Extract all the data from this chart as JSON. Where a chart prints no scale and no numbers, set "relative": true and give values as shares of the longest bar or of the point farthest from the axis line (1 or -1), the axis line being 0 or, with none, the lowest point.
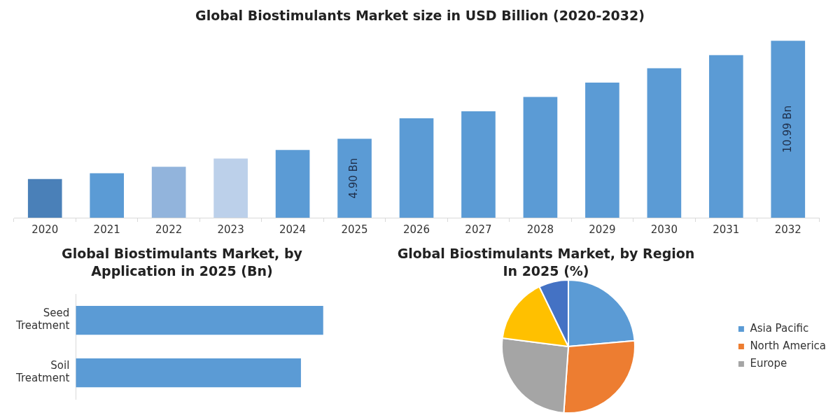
{
  "chart_data": [
    {
      "type": "bar",
      "title": "Global Biostimulants Market size in USD Billion (2020-2032)",
      "categories": [
        "2020",
        "2021",
        "2022",
        "2023",
        "2024",
        "2025",
        "2026",
        "2027",
        "2028",
        "2029",
        "2030",
        "2031",
        "2032"
      ],
      "values": [
        2.4,
        2.76,
        3.16,
        3.67,
        4.21,
        4.9,
        6.17,
        6.61,
        7.5,
        8.39,
        9.28,
        10.1,
        10.99
      ],
      "colors": [
        "#4a80b8",
        "#5b9bd5",
        "#92b4dc",
        "#bcd0ea",
        "#5b9bd5",
        "#5b9bd5",
        "#5b9bd5",
        "#5b9bd5",
        "#5b9bd5",
        "#5b9bd5",
        "#5b9bd5",
        "#5b9bd5",
        "#5b9bd5"
      ],
      "value_labels": [
        null,
        null,
        null,
        null,
        null,
        "4.90 Bn",
        null,
        null,
        null,
        null,
        null,
        null,
        "10.99 Bn"
      ]
    },
    {
      "type": "bar",
      "orientation": "horizontal",
      "relative": true,
      "title": "Global Biostimulants Market, by Application in 2025 (Bn)",
      "categories": [
        "Seed Treatment",
        "Soil Treatment"
      ],
      "values": [
        1,
        0.91
      ],
      "color": "#5b9bd5"
    },
    {
      "type": "pie",
      "title": "Global Biostimulants Market, by Region In 2025 (%)",
      "categories": [
        "Asia Pacific",
        "North America",
        "Europe",
        null,
        null
      ],
      "values": [
        23.6,
        27.5,
        25.9,
        15.8,
        7.2
      ],
      "colors": [
        "#5b9bd5",
        "#ed7d31",
        "#a5a5a5",
        "#ffc000",
        "#4472c4"
      ],
      "legend": "right"
    }
  ]
}
